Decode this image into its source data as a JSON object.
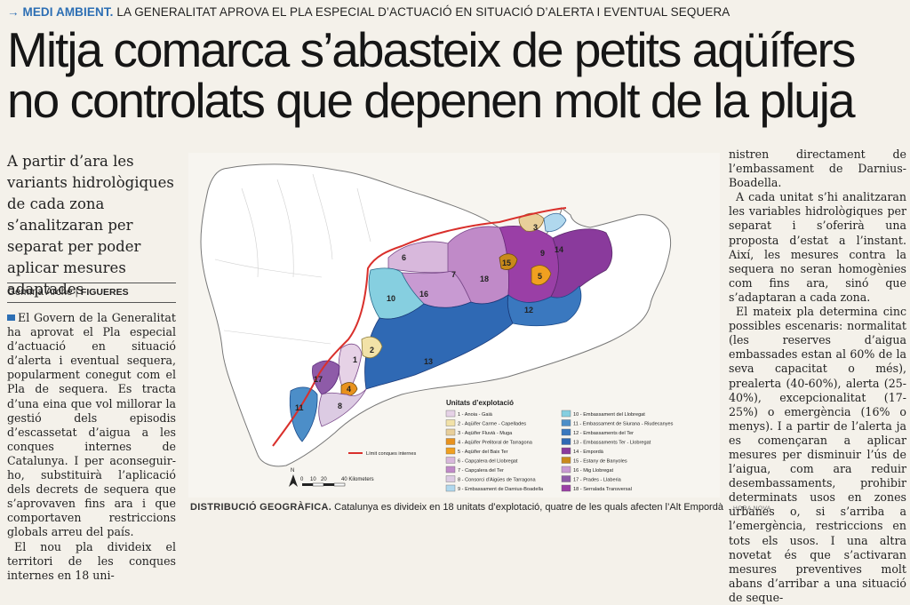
{
  "kicker": {
    "section": "MEDI AMBIENT.",
    "text": "LA GENERALITAT APROVA EL PLA ESPECIAL D’ACTUACIÓ EN SITUACIÓ D’ALERTA I EVENTUAL SEQUERA"
  },
  "headline": {
    "line1": "Mitja comarca s’abasteix de petits aqüífers",
    "line2": "no controlats que depenen molt de la pluja"
  },
  "standfirst": "A partir d’ara les variants hidrològiques de cada zona s’analitzaran per separat per poder aplicar mesures adaptades",
  "byline": {
    "author": "Gemma Arché",
    "separator": "|",
    "role": "FIGUERES"
  },
  "body": {
    "col1_p1": "El Govern de la Generalitat ha aprovat el Pla especial d’actuació en situació d’alerta i eventual sequera, popularment conegut com el Pla de sequera. Es tracta d’una eina que vol millorar la gestió dels episodis d’escassetat d’aigua a les conques internes de Catalunya. I per aconseguir-ho, substituirà l’aplicació dels decrets de sequera que s’aprovaven fins ara i que comportaven restriccions globals arreu del país.",
    "col1_p2": "El nou pla divideix el territori de les conques internes en 18 uni-",
    "col3_p0": "nistren directament de l’embassament de Darnius-Boadella.",
    "col3_p1": "A cada unitat s’hi analitzaran les variables hidrològiques per separat i s’oferirà una proposta d’estat a l’instant. Així, les mesures contra la sequera no seran homogènies com fins ara, sinó que s’adaptaran a cada zona.",
    "col3_p2": "El mateix pla determina cinc possibles escenaris: normalitat (les reserves d’aigua embassades estan al 60% de la seva capacitat o més), prealerta (40-60%), alerta (25-40%), excepcionalitat (17-25%) o emergència (16% o menys). I a partir de l’alerta ja es començaran a aplicar mesures per disminuir l’ús de l’aigua, com ara reduir desembassaments, prohibir determinats usos en zones urbanes o, si s’arriba a l’emergència, restriccions en tots els usos. I una altra novetat és que s’activaran mesures preventives molt abans d’arribar a una situació de seque-"
  },
  "map": {
    "legend_title": "Unitats d’explotació",
    "legend": [
      {
        "label": "1 - Anoia - Gaià",
        "color": "#e6d2e6"
      },
      {
        "label": "2 - Aqüífer Carme - Capellades",
        "color": "#f2e2a8"
      },
      {
        "label": "3 - Aqüífer Fluvià - Muga",
        "color": "#e8cf9a"
      },
      {
        "label": "4 - Aqüífer Prelitoral de Tarragona",
        "color": "#e8921e"
      },
      {
        "label": "5 - Aqüífer del Baix Ter",
        "color": "#f0a020"
      },
      {
        "label": "6 - Capçalera del Llobregat",
        "color": "#d8b8dc"
      },
      {
        "label": "7 - Capçalera del Ter",
        "color": "#c08ac8"
      },
      {
        "label": "8 - Consorci d’Aigües de Tarragona",
        "color": "#dccbe3"
      },
      {
        "label": "9 - Embassament de Darnius-Boadella",
        "color": "#b0d8ee"
      },
      {
        "label": "10 - Embassament del Llobregat",
        "color": "#86cfe0"
      },
      {
        "label": "11 - Embassament de Siurana - Riudecanyes",
        "color": "#4c8ec8"
      },
      {
        "label": "12 - Embassaments del Ter",
        "color": "#3a78bf"
      },
      {
        "label": "13 - Embassaments Ter - Llobregat",
        "color": "#2f69b4"
      },
      {
        "label": "14 - Empordà",
        "color": "#8a3a9c"
      },
      {
        "label": "15 - Estany de Banyoles",
        "color": "#c98a1a"
      },
      {
        "label": "16 - Mig Llobregat",
        "color": "#c89ad2"
      },
      {
        "label": "17 - Prades - Llaberia",
        "color": "#8e5ba8"
      },
      {
        "label": "18 - Serralada Transversal",
        "color": "#9a3fa6"
      }
    ],
    "limit_label": "Límit conques internes",
    "scale_labels": [
      "0",
      "10",
      "20",
      "40 Kilometers"
    ],
    "north_label": "N",
    "zone_numbers": [
      "1",
      "2",
      "3",
      "4",
      "5",
      "6",
      "7",
      "8",
      "9",
      "10",
      "11",
      "12",
      "13",
      "14",
      "15",
      "16",
      "17",
      "18"
    ]
  },
  "caption": {
    "title": "DISTRIBUCIÓ GEOGRÀFICA.",
    "text": "Catalunya es divideix en 18 unitats d’explotació, quatre de les quals afecten l’Alt Empordà",
    "credit": "HORA NOVA"
  }
}
